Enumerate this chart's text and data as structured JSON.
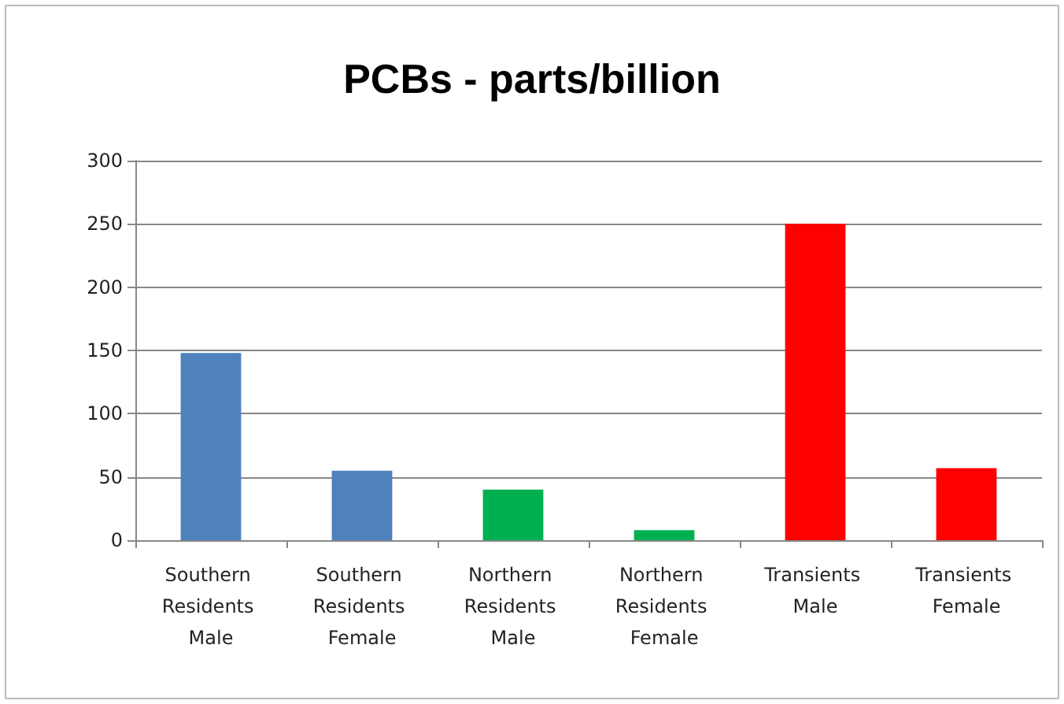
{
  "chart_data": {
    "type": "bar",
    "title": "PCBs - parts/billion",
    "categories": [
      "Southern Residents Male",
      "Southern Residents Female",
      "Northern Residents Male",
      "Northern Residents Female",
      "Transients Male",
      "Transients Female"
    ],
    "values": [
      148,
      55,
      40,
      8,
      250,
      57
    ],
    "colors": [
      "#4f81bd",
      "#4f81bd",
      "#00b050",
      "#00b050",
      "#ff0000",
      "#ff0000"
    ],
    "ylim": [
      0,
      300
    ],
    "yticks": [
      0,
      50,
      100,
      150,
      200,
      250,
      300
    ],
    "grid": "y"
  }
}
